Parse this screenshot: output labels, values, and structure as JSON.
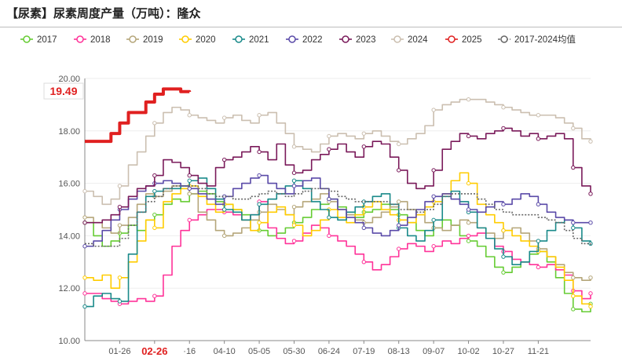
{
  "title": "【尿素】尿素周度产量（万吨）：隆众",
  "chart_data": {
    "type": "line",
    "ylim": [
      10,
      20
    ],
    "y_ticks": [
      "10.00",
      "12.00",
      "14.00",
      "16.00",
      "18.00",
      "20.00"
    ],
    "x_tick_labels": [
      "01-26",
      "02-26",
      "·16",
      "04-10",
      "05-05",
      "05-30",
      "06-24",
      "07-19",
      "08-13",
      "09-07",
      "10-02",
      "10-27",
      "11-21"
    ],
    "x_tick_weeks": [
      4,
      8,
      12,
      16,
      20,
      24,
      28,
      32,
      36,
      40,
      44,
      48,
      52
    ],
    "highlight_tick": "02-26",
    "last_value_label": "19.49",
    "last_value": 19.49,
    "x_range_weeks": [
      0,
      58
    ],
    "series": [
      {
        "name": "2017",
        "color": "#66cc33",
        "values": [
          14.5,
          14.0,
          13.6,
          13.8,
          14.1,
          14.4,
          14.2,
          14.6,
          14.8,
          15.2,
          15.4,
          15.3,
          15.6,
          15.7,
          15.6,
          15.3,
          15.2,
          15.0,
          14.8,
          14.6,
          14.2,
          14.0,
          14.1,
          14.3,
          14.5,
          14.7,
          15.0,
          15.2,
          15.4,
          15.1,
          14.9,
          14.7,
          14.9,
          15.0,
          15.2,
          15.0,
          14.8,
          14.5,
          14.2,
          14.0,
          14.3,
          14.6,
          14.4,
          14.0,
          13.8,
          13.6,
          13.2,
          12.8,
          12.6,
          12.8,
          13.0,
          13.3,
          13.4,
          13.0,
          12.4,
          11.8,
          11.2,
          11.1,
          11.4
        ]
      },
      {
        "name": "2018",
        "color": "#ff3399",
        "values": [
          11.8,
          11.8,
          11.6,
          11.5,
          11.4,
          11.5,
          11.6,
          11.5,
          11.7,
          12.5,
          13.6,
          14.2,
          14.6,
          14.8,
          15.0,
          15.0,
          14.9,
          14.8,
          14.6,
          14.8,
          15.3,
          14.3,
          13.9,
          13.7,
          13.8,
          14.1,
          14.4,
          14.3,
          14.0,
          13.8,
          13.6,
          13.3,
          13.0,
          12.7,
          12.9,
          13.2,
          13.5,
          13.7,
          13.6,
          13.4,
          13.6,
          13.8,
          13.7,
          13.9,
          14.0,
          14.1,
          13.9,
          13.6,
          13.4,
          13.1,
          13.0,
          12.9,
          12.8,
          12.9,
          12.7,
          12.5,
          11.9,
          11.6,
          11.8
        ]
      },
      {
        "name": "2019",
        "color": "#b5a67a",
        "values": [
          14.7,
          14.5,
          14.3,
          14.1,
          14.4,
          14.7,
          15.2,
          15.6,
          15.5,
          15.7,
          15.9,
          15.8,
          15.6,
          14.9,
          14.6,
          14.2,
          14.0,
          14.1,
          14.3,
          14.6,
          14.9,
          15.2,
          15.0,
          14.8,
          15.1,
          15.3,
          15.4,
          15.6,
          15.3,
          15.0,
          14.8,
          14.6,
          14.5,
          14.7,
          14.9,
          15.1,
          15.3,
          15.0,
          14.8,
          14.5,
          14.3,
          14.2,
          14.4,
          14.6,
          14.5,
          14.3,
          14.1,
          13.9,
          14.2,
          14.3,
          14.1,
          13.8,
          13.5,
          13.2,
          12.9,
          12.6,
          12.4,
          12.3,
          12.4
        ]
      },
      {
        "name": "2020",
        "color": "#ffcc00",
        "values": [
          12.4,
          12.3,
          12.5,
          12.0,
          12.4,
          13.0,
          13.8,
          14.6,
          14.3,
          15.3,
          15.6,
          15.8,
          15.9,
          15.5,
          15.2,
          14.9,
          15.2,
          15.0,
          14.6,
          14.2,
          14.5,
          14.9,
          15.1,
          14.8,
          14.4,
          14.0,
          14.2,
          14.6,
          15.0,
          14.7,
          14.5,
          14.8,
          15.1,
          15.3,
          15.0,
          14.8,
          14.6,
          14.5,
          14.8,
          15.1,
          15.3,
          15.6,
          16.1,
          16.4,
          16.0,
          15.2,
          14.8,
          14.5,
          14.2,
          14.0,
          13.8,
          13.6,
          13.4,
          13.2,
          12.8,
          12.3,
          11.7,
          11.4,
          11.3
        ]
      },
      {
        "name": "2021",
        "color": "#1a8a8a",
        "values": [
          11.3,
          11.7,
          11.8,
          11.6,
          11.5,
          13.3,
          14.9,
          15.5,
          15.7,
          15.8,
          15.8,
          15.9,
          16.1,
          16.2,
          15.8,
          15.4,
          15.0,
          14.9,
          14.6,
          14.8,
          15.2,
          15.4,
          15.6,
          15.9,
          16.1,
          15.8,
          15.3,
          15.0,
          14.7,
          14.6,
          14.9,
          15.1,
          15.3,
          15.5,
          15.6,
          15.2,
          14.3,
          14.0,
          13.8,
          14.2,
          14.6,
          15.5,
          15.7,
          15.3,
          14.9,
          14.3,
          13.9,
          13.5,
          13.2,
          12.9,
          13.0,
          13.4,
          13.8,
          14.2,
          14.5,
          14.6,
          14.3,
          13.8,
          13.7
        ]
      },
      {
        "name": "2022",
        "color": "#5a4aa8",
        "values": [
          13.6,
          13.8,
          14.2,
          14.6,
          15.0,
          15.4,
          15.7,
          15.9,
          16.0,
          16.1,
          16.0,
          15.9,
          15.8,
          15.6,
          15.4,
          15.2,
          15.5,
          15.8,
          16.0,
          16.2,
          16.3,
          16.0,
          15.8,
          15.6,
          15.9,
          16.1,
          16.2,
          15.8,
          15.4,
          15.0,
          14.7,
          14.5,
          14.3,
          14.1,
          14.0,
          14.2,
          14.4,
          14.7,
          15.0,
          15.3,
          15.5,
          15.6,
          15.4,
          15.2,
          15.0,
          14.9,
          15.1,
          15.3,
          15.2,
          15.4,
          15.6,
          15.5,
          15.2,
          14.9,
          14.7,
          14.6,
          14.5,
          14.5,
          14.5
        ]
      },
      {
        "name": "2023",
        "color": "#7a1a5a",
        "values": [
          14.5,
          14.5,
          14.6,
          14.8,
          15.1,
          15.5,
          15.8,
          15.9,
          16.3,
          16.9,
          16.8,
          16.6,
          16.3,
          16.0,
          15.9,
          16.6,
          16.9,
          17.0,
          17.2,
          17.4,
          17.2,
          16.9,
          17.5,
          16.7,
          16.4,
          16.5,
          16.9,
          17.1,
          17.3,
          17.5,
          17.2,
          17.0,
          17.4,
          17.6,
          17.5,
          17.0,
          16.5,
          16.0,
          15.8,
          15.9,
          16.5,
          17.3,
          17.6,
          17.9,
          17.8,
          17.7,
          17.9,
          18.0,
          18.1,
          18.0,
          17.8,
          17.9,
          17.7,
          17.8,
          17.9,
          17.7,
          16.6,
          15.9,
          15.6
        ]
      },
      {
        "name": "2024",
        "color": "#cbbfb0",
        "values": [
          15.7,
          15.5,
          15.2,
          15.4,
          15.9,
          16.7,
          17.2,
          17.8,
          18.3,
          18.7,
          18.9,
          18.8,
          18.6,
          18.5,
          18.4,
          18.3,
          18.5,
          18.6,
          18.4,
          18.3,
          18.6,
          18.7,
          18.3,
          17.9,
          17.4,
          17.3,
          17.2,
          17.5,
          17.8,
          17.9,
          17.8,
          17.7,
          17.9,
          18.0,
          17.8,
          17.6,
          17.5,
          17.7,
          17.9,
          18.2,
          18.8,
          19.0,
          19.1,
          19.2,
          19.2,
          19.2,
          19.1,
          19.0,
          18.9,
          18.8,
          18.7,
          18.6,
          18.6,
          18.6,
          18.5,
          18.3,
          18.1,
          17.7,
          17.6
        ]
      },
      {
        "name": "2025",
        "color": "#e02020",
        "width": 4,
        "values": [
          17.6,
          17.6,
          17.6,
          17.9,
          18.3,
          18.7,
          18.7,
          19.1,
          19.4,
          19.6,
          19.6,
          19.5,
          19.49
        ]
      },
      {
        "name": "2017-2024均值",
        "color": "#666666",
        "dash": true,
        "values": [
          13.7,
          13.6,
          13.6,
          13.6,
          13.9,
          14.4,
          14.9,
          15.3,
          15.5,
          15.8,
          15.9,
          15.9,
          15.9,
          15.8,
          15.6,
          15.5,
          15.5,
          15.4,
          15.4,
          15.5,
          15.6,
          15.7,
          15.6,
          15.5,
          15.6,
          15.7,
          15.8,
          15.8,
          15.7,
          15.5,
          15.4,
          15.3,
          15.3,
          15.3,
          15.3,
          15.2,
          15.0,
          15.0,
          14.9,
          15.0,
          15.2,
          15.5,
          15.6,
          15.6,
          15.6,
          15.4,
          15.2,
          15.0,
          14.9,
          14.8,
          14.8,
          14.8,
          14.7,
          14.6,
          14.5,
          14.2,
          13.9,
          13.7,
          13.6
        ]
      }
    ]
  }
}
